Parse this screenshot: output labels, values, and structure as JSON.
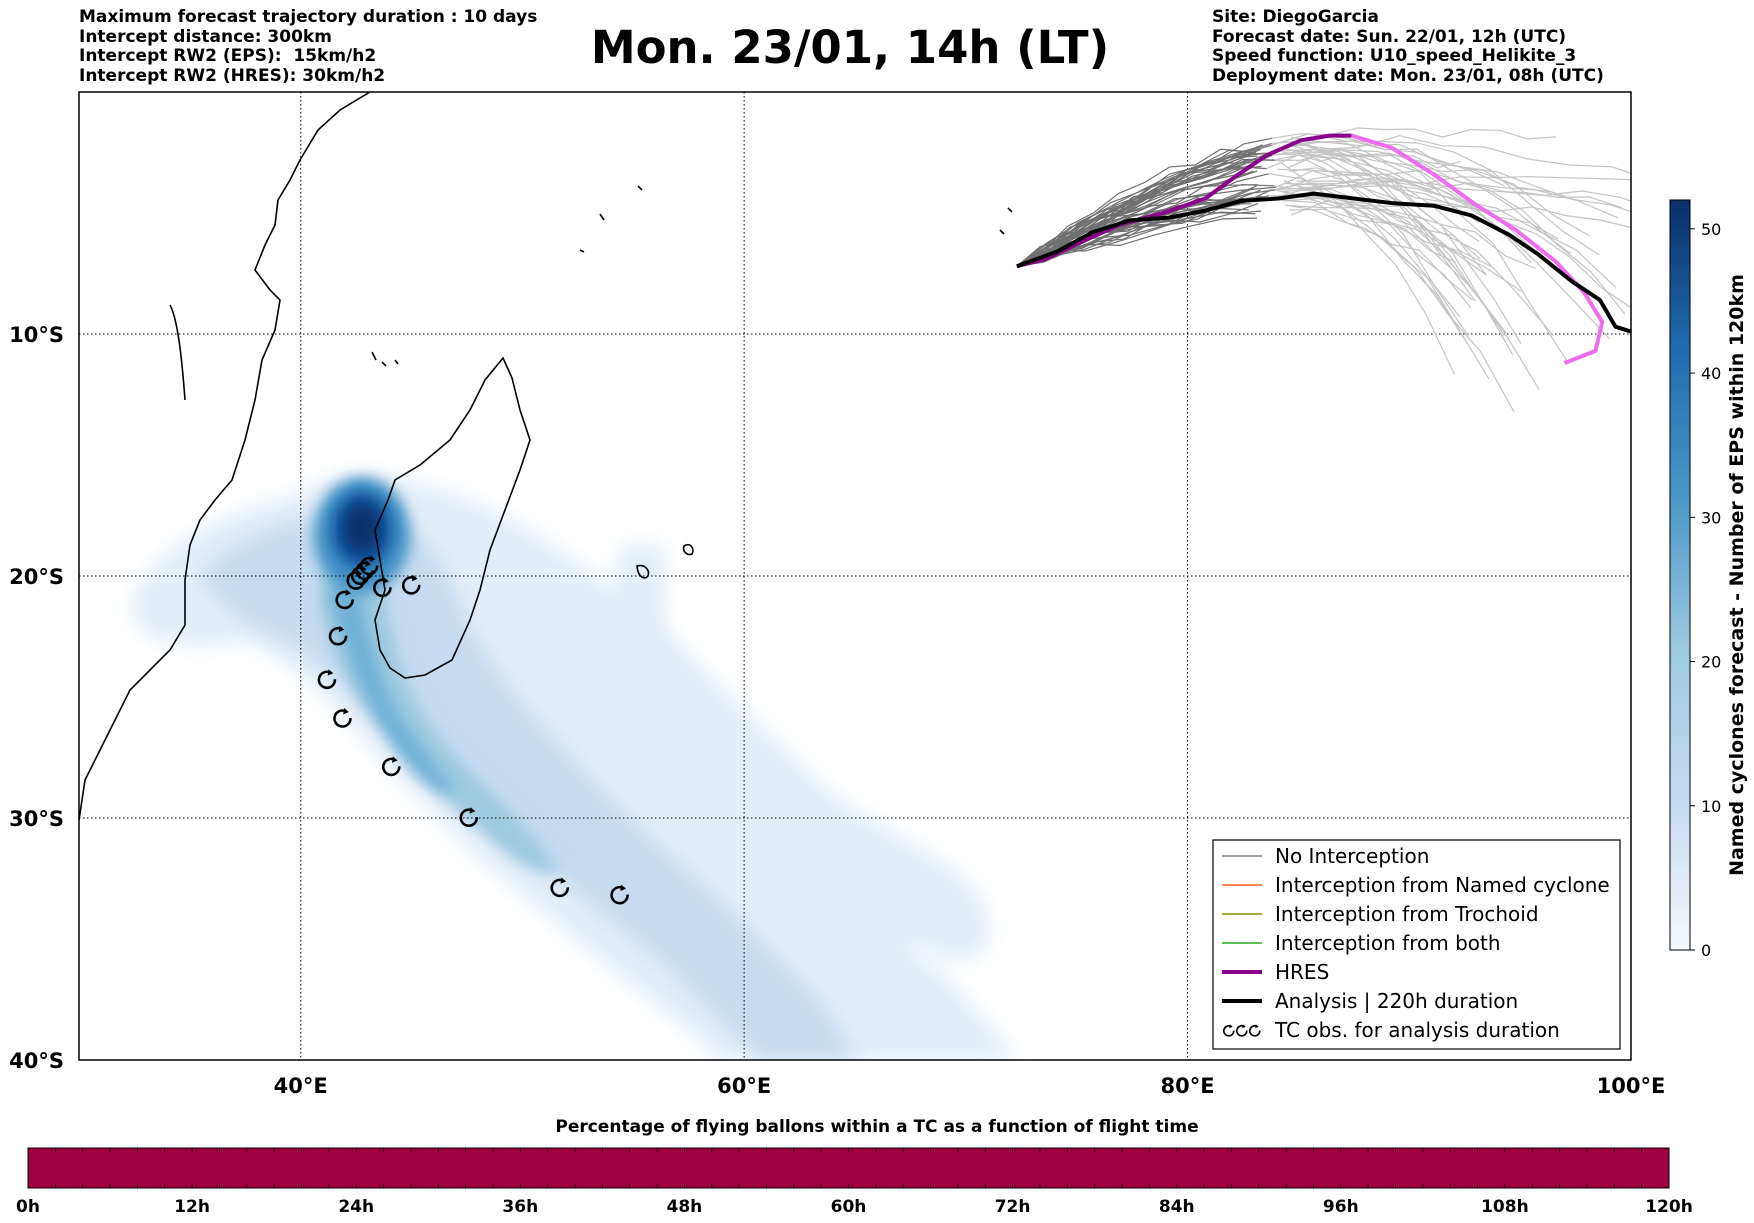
{
  "header": {
    "left_lines": [
      "Maximum forecast trajectory duration : 10 days",
      "Intercept distance: 300km",
      "Intercept RW2 (EPS):  15km/h2",
      "Intercept RW2 (HRES): 30km/h2"
    ],
    "title": "Mon. 23/01, 14h (LT)",
    "right_lines": [
      "Site: DiegoGarcia",
      "Forecast date: Sun. 22/01, 12h (UTC)",
      "Speed function: U10_speed_Helikite_3",
      "Deployment date: Mon. 23/01, 08h (UTC)"
    ]
  },
  "map": {
    "extent": {
      "lon": [
        30,
        100
      ],
      "lat": [
        -40,
        0
      ]
    },
    "lon_ticks": [
      {
        "value": 40,
        "label": "40°E"
      },
      {
        "value": 60,
        "label": "60°E"
      },
      {
        "value": 80,
        "label": "80°E"
      },
      {
        "value": 100,
        "label": "100°E"
      }
    ],
    "lat_ticks": [
      {
        "value": -10,
        "label": "10°S"
      },
      {
        "value": -20,
        "label": "20°S"
      },
      {
        "value": -30,
        "label": "30°S"
      },
      {
        "value": -40,
        "label": "40°S"
      }
    ],
    "colors": {
      "density": [
        "#e3edf7",
        "#c6dbef",
        "#9ecae1",
        "#6baed6",
        "#4292c6",
        "#2171b5",
        "#08519c",
        "#08306b"
      ],
      "ensemble_near": "#707070",
      "ensemble_far": "#c4c4c4",
      "hres": "#8b008b",
      "hres_late": "#ee6cee",
      "analysis": "#000000"
    },
    "tc_observations": [
      [
        43.1,
        -19.6
      ],
      [
        42.9,
        -19.8
      ],
      [
        42.7,
        -20.0
      ],
      [
        42.5,
        -20.2
      ],
      [
        43.7,
        -20.5
      ],
      [
        45.0,
        -20.4
      ],
      [
        42.0,
        -21.0
      ],
      [
        41.7,
        -22.5
      ],
      [
        41.2,
        -24.3
      ],
      [
        41.9,
        -25.9
      ],
      [
        44.1,
        -27.9
      ],
      [
        47.6,
        -30.0
      ],
      [
        51.7,
        -32.9
      ],
      [
        54.4,
        -33.2
      ]
    ],
    "hres_track": [
      [
        72.3,
        -7.2
      ],
      [
        73.6,
        -6.9
      ],
      [
        75.2,
        -6.2
      ],
      [
        76.9,
        -5.5
      ],
      [
        78.9,
        -5.0
      ],
      [
        80.8,
        -4.4
      ],
      [
        82.3,
        -3.4
      ],
      [
        83.6,
        -2.6
      ],
      [
        85.1,
        -2.0
      ],
      [
        86.4,
        -1.8
      ],
      [
        87.4,
        -1.8
      ]
    ],
    "hres_late_track": [
      [
        87.4,
        -1.8
      ],
      [
        89.2,
        -2.3
      ],
      [
        91.1,
        -3.4
      ],
      [
        92.9,
        -4.6
      ],
      [
        94.8,
        -5.7
      ],
      [
        96.6,
        -7.0
      ],
      [
        97.9,
        -8.3
      ],
      [
        98.7,
        -9.5
      ],
      [
        98.4,
        -10.7
      ],
      [
        97.0,
        -11.2
      ]
    ],
    "analysis_track": [
      [
        72.3,
        -7.2
      ],
      [
        74.1,
        -6.6
      ],
      [
        75.7,
        -5.8
      ],
      [
        77.4,
        -5.3
      ],
      [
        79.1,
        -5.2
      ],
      [
        80.8,
        -4.9
      ],
      [
        82.4,
        -4.5
      ],
      [
        84.1,
        -4.4
      ],
      [
        85.7,
        -4.2
      ],
      [
        87.5,
        -4.4
      ],
      [
        89.3,
        -4.6
      ],
      [
        91.1,
        -4.7
      ],
      [
        92.8,
        -5.1
      ],
      [
        94.5,
        -5.9
      ],
      [
        95.8,
        -6.7
      ],
      [
        97.3,
        -7.8
      ],
      [
        98.6,
        -8.6
      ],
      [
        99.3,
        -9.7
      ],
      [
        100.0,
        -9.9
      ]
    ]
  },
  "legend": {
    "items": [
      {
        "label": "No Interception",
        "color": "#808080",
        "width": 1.5
      },
      {
        "label": "Interception from Named cyclone",
        "color": "#ff5a1a",
        "width": 1.5
      },
      {
        "label": "Interception from Trochoid",
        "color": "#8b8b00",
        "width": 1.5
      },
      {
        "label": "Interception from both",
        "color": "#22aa22",
        "width": 1.5
      },
      {
        "label": "HRES",
        "color": "#8b008b",
        "width": 4
      },
      {
        "label": "Analysis | 220h duration",
        "color": "#000000",
        "width": 4
      },
      {
        "label": "TC obs. for analysis duration",
        "symbol": "tc"
      }
    ]
  },
  "colorbar": {
    "label": "Named cyclones forecast - Number of EPS within 120km",
    "ticks": [
      0,
      10,
      20,
      30,
      40,
      50
    ],
    "max": 52
  },
  "bottom_bar": {
    "title": "Percentage of flying ballons within a TC as a function of flight time",
    "tick_labels": [
      "0h",
      "12h",
      "24h",
      "36h",
      "48h",
      "60h",
      "72h",
      "84h",
      "96h",
      "108h",
      "120h"
    ],
    "color": "#a0003f"
  }
}
